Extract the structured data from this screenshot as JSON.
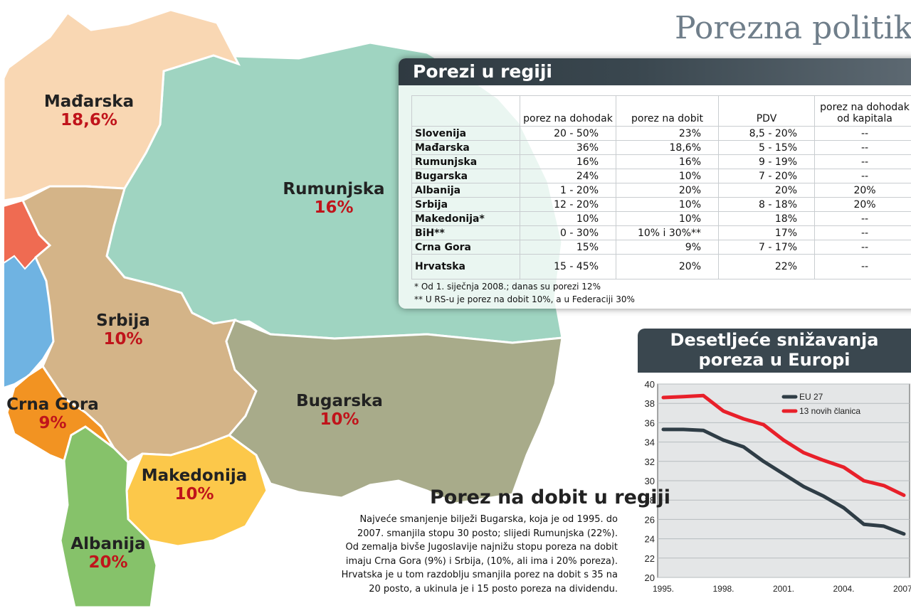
{
  "title": "Porezna politika",
  "regions": [
    {
      "name": "Mađarska",
      "rate": "18,6%"
    },
    {
      "name": "Rumunjska",
      "rate": "16%"
    },
    {
      "name": "Srbija",
      "rate": "10%"
    },
    {
      "name": "Bugarska",
      "rate": "10%"
    },
    {
      "name": "Crna Gora",
      "rate": "9%"
    },
    {
      "name": "Makedonija",
      "rate": "10%"
    },
    {
      "name": "Albanija",
      "rate": "20%"
    }
  ],
  "tax_table": {
    "title": "Porezi u regiji",
    "headers": [
      "porez na dohodak",
      "porez na dobit",
      "PDV",
      "porez na dohodak od kapitala"
    ],
    "rows": [
      {
        "country": "Slovenija",
        "income": "20 - 50%",
        "profit": "23%",
        "vat": "8,5 - 20%",
        "capital": "--"
      },
      {
        "country": "Mađarska",
        "income": "36%",
        "profit": "18,6%",
        "vat": "5 - 15%",
        "capital": "--"
      },
      {
        "country": "Rumunjska",
        "income": "16%",
        "profit": "16%",
        "vat": "9 - 19%",
        "capital": "--"
      },
      {
        "country": "Bugarska",
        "income": "24%",
        "profit": "10%",
        "vat": "7 - 20%",
        "capital": "--"
      },
      {
        "country": "Albanija",
        "income": "1 - 20%",
        "profit": "20%",
        "vat": "20%",
        "capital": "20%"
      },
      {
        "country": "Srbija",
        "income": "12 - 20%",
        "profit": "10%",
        "vat": "8 - 18%",
        "capital": "20%"
      },
      {
        "country": "Makedonija*",
        "income": "10%",
        "profit": "10%",
        "vat": "18%",
        "capital": "--"
      },
      {
        "country": "BiH**",
        "income": "0 - 30%",
        "profit": "10% i 30%**",
        "vat": "17%",
        "capital": "--"
      },
      {
        "country": "Crna Gora",
        "income": "15%",
        "profit": "9%",
        "vat": "7 - 17%",
        "capital": "--"
      },
      {
        "country": "Hrvatska",
        "income": "15 - 45%",
        "profit": "20%",
        "vat": "22%",
        "capital": "--"
      }
    ],
    "footnotes": [
      "* Od 1. siječnja 2008.; danas su porezi 12%",
      "** U RS-u je porez na dobit 10%, a u Federaciji 30%"
    ]
  },
  "article": {
    "title": "Porez na dobit u regiji",
    "lines": [
      "Najveće smanjenje bilježi Bugarska, koja je od 1995. do",
      "2007. smanjila stopu 30 posto; slijedi Rumunjska (22%).",
      "Od zemalja bivše Jugoslavije najnižu stopu poreza na dobit",
      "imaju Crna Gora (9%) i Srbija, (10%, ali ima i 20% poreza).",
      "Hrvatska je u tom razdoblju smanjila porez na dobit s 35 na",
      "20 posto, a ukinula je i 15 posto poreza na dividendu."
    ]
  },
  "colors": {
    "eu27": "#2f3d46",
    "new13": "#e8202a",
    "pct": "#c0141b",
    "hungary": "#f9d7b3",
    "romania": "#9fd4c1",
    "serbia": "#d4b488",
    "bulgaria": "#a8ab8a",
    "montenegro": "#f29322",
    "macedonia": "#fcc84a",
    "albania": "#86c26a"
  },
  "chart_data": {
    "type": "line",
    "title": "Desetljeće snižavanja poreza u Europi",
    "title_lines": [
      "Desetljeće snižavanja",
      "poreza u Europi"
    ],
    "x": [
      1995,
      1996,
      1997,
      1998,
      1999,
      2000,
      2001,
      2002,
      2003,
      2004,
      2005,
      2006,
      2007
    ],
    "x_tick_labels": [
      "1995.",
      "1998.",
      "2001.",
      "2004.",
      "2007."
    ],
    "x_ticks": [
      1995,
      1998,
      2001,
      2004,
      2007
    ],
    "ylim": [
      20,
      40
    ],
    "y_ticks": [
      20,
      22,
      24,
      26,
      28,
      30,
      32,
      34,
      36,
      38,
      40
    ],
    "grid": true,
    "legend": "top-center",
    "series": [
      {
        "name": "EU 27",
        "values": [
          35.3,
          35.3,
          35.2,
          34.2,
          33.5,
          32.0,
          30.7,
          29.4,
          28.4,
          27.2,
          25.5,
          25.3,
          24.5
        ]
      },
      {
        "name": "13 novih članica",
        "values": [
          38.6,
          38.7,
          38.8,
          37.2,
          36.4,
          35.8,
          34.2,
          32.9,
          32.1,
          31.4,
          30.0,
          29.5,
          28.5
        ]
      }
    ]
  }
}
